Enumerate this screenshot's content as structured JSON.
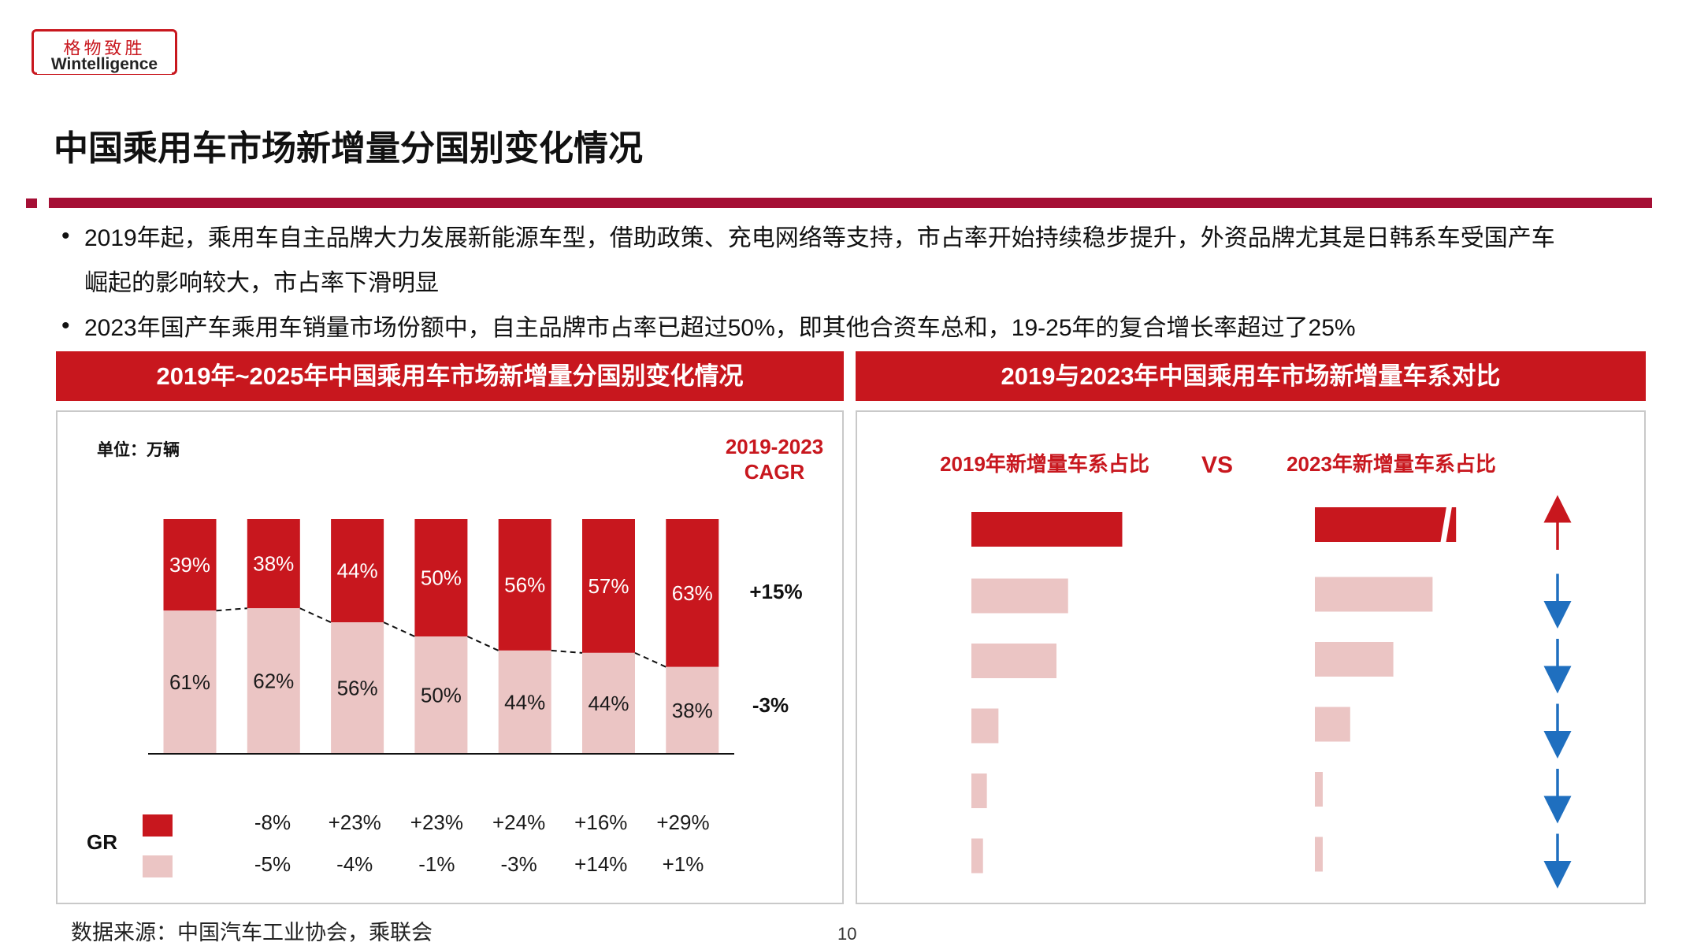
{
  "logo": {
    "cn": "格物致胜",
    "en": "Wintelligence"
  },
  "title": "中国乘用车市场新增量分国别变化情况",
  "bullets": [
    {
      "lines": [
        "2019年起，乘用车自主品牌大力发展新能源车型，借助政策、充电网络等支持，市占率开始持续稳步提升，外资品牌尤其是日韩系车受国产车",
        "崛起的影响较大，市占率下滑明显"
      ]
    },
    {
      "lines": [
        "2023年国产车乘用车销量市场份额中，自主品牌市占率已超过50%，即其他合资车总和，19-25年的复合增长率超过了25%"
      ]
    }
  ],
  "left_panel": {
    "header": "2019年~2025年中国乘用车市场新增量分国别变化情况",
    "unit": "单位：万辆",
    "cagr_title": [
      "2019-2023",
      "CAGR"
    ],
    "cagr": [
      "+15%",
      "-3%"
    ],
    "gr_label": "GR",
    "gr_rows": [
      [
        "-8%",
        "+23%",
        "+23%",
        "+24%",
        "+16%",
        "+29%"
      ],
      [
        "-5%",
        "-4%",
        "-1%",
        "-3%",
        "+14%",
        "+1%"
      ]
    ]
  },
  "right_panel": {
    "header": "2019与2023年中国乘用车市场新增量车系对比",
    "left_title": "2019年新增量车系占比",
    "vs": "VS",
    "right_title": "2023年新增量车系占比",
    "arrows": [
      "up",
      "down",
      "down",
      "down",
      "down",
      "down"
    ]
  },
  "colors": {
    "dark": "#c8171e",
    "light": "#ebc5c4",
    "arrow_up": "#c8171e",
    "arrow_down": "#1f6fbf",
    "rule": "#a50f35"
  },
  "chart_data": [
    {
      "type": "bar",
      "stacked": true,
      "percent": true,
      "categories": [
        "",
        "",
        "",
        "",
        "",
        "",
        ""
      ],
      "series": [
        {
          "values": [
            39,
            38,
            44,
            50,
            56,
            57,
            63
          ],
          "labels": [
            "39%",
            "38%",
            "44%",
            "50%",
            "56%",
            "57%",
            "63%"
          ],
          "color": "#c8171e"
        },
        {
          "values": [
            61,
            62,
            56,
            50,
            44,
            44,
            38
          ],
          "labels": [
            "61%",
            "62%",
            "56%",
            "50%",
            "44%",
            "44%",
            "38%"
          ],
          "color": "#ebc5c4"
        }
      ],
      "ylim": [
        0,
        100
      ],
      "connector_lines": "dashed"
    },
    {
      "type": "bar",
      "orientation": "horizontal",
      "title": "2019年新增量车系占比",
      "values": [
        39,
        25,
        22,
        7,
        4,
        3
      ],
      "colors": [
        "#c8171e",
        "#ebc5c4",
        "#ebc5c4",
        "#ebc5c4",
        "#ebc5c4",
        "#ebc5c4"
      ]
    },
    {
      "type": "bar",
      "orientation": "horizontal",
      "title": "2023年新增量车系占比",
      "values": [
        56,
        30,
        20,
        9,
        2,
        2
      ],
      "axis_break": true,
      "colors": [
        "#c8171e",
        "#ebc5c4",
        "#ebc5c4",
        "#ebc5c4",
        "#ebc5c4",
        "#ebc5c4"
      ]
    }
  ]
}
